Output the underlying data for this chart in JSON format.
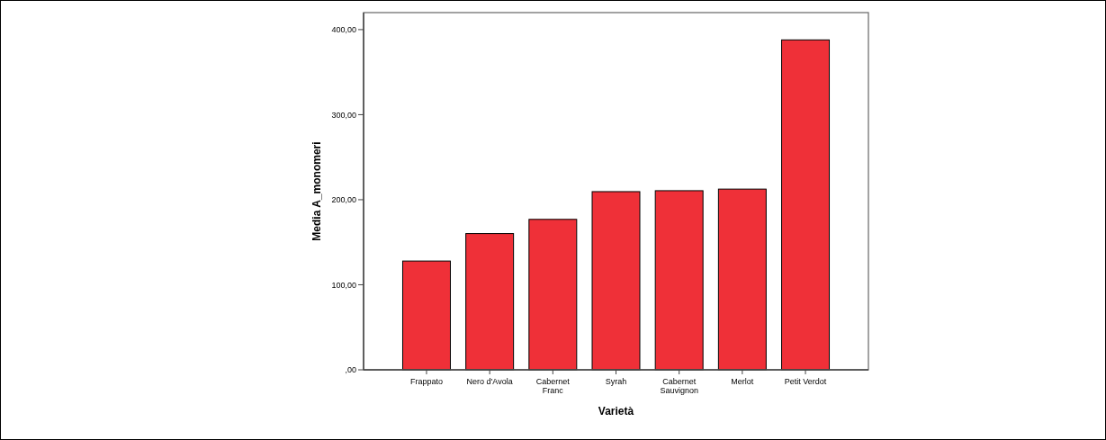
{
  "chart_data": {
    "type": "bar",
    "xlabel": "Varietà",
    "ylabel": "Media A_monomeri",
    "categories": [
      "Frappato",
      "Nero d'Avola",
      "Cabernet Franc",
      "Syrah",
      "Cabernet Sauvignon",
      "Merlot",
      "Petit Verdot"
    ],
    "values": [
      127.9,
      160.2,
      176.9,
      209.5,
      210.6,
      212.5,
      387.9
    ],
    "color": "#ef3038",
    "ylim": [
      0,
      420
    ],
    "yticks": [
      {
        "value": 0,
        "label": ",00"
      },
      {
        "value": 100,
        "label": "100,00"
      },
      {
        "value": 200,
        "label": "200,00"
      },
      {
        "value": 300,
        "label": "300,00"
      },
      {
        "value": 400,
        "label": "400,00"
      }
    ],
    "grid": false
  }
}
